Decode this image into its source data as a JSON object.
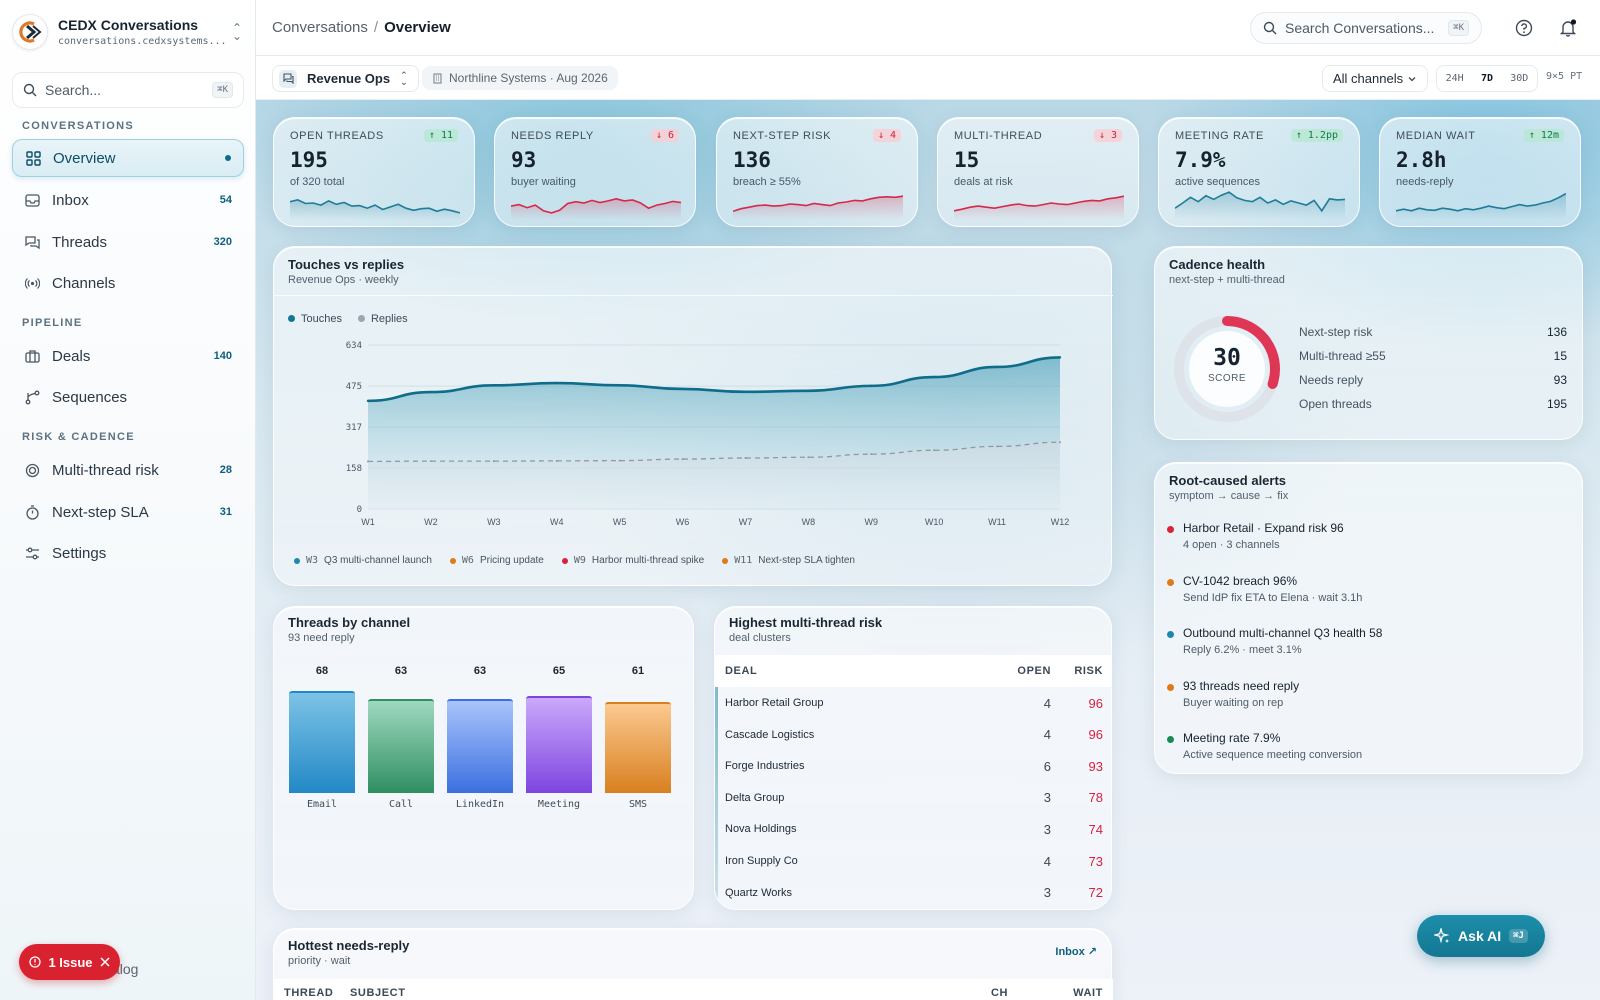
{
  "app": {
    "name": "CEDX Conversations",
    "domain": "conversations.cedxsystems..."
  },
  "sidebar": {
    "search_placeholder": "Search...",
    "search_shortcut": "⌘K",
    "sections": {
      "conversations": "CONVERSATIONS",
      "pipeline": "PIPELINE",
      "risk": "RISK & CADENCE"
    },
    "items": [
      {
        "label": "Overview",
        "count": "",
        "icon": "grid-icon"
      },
      {
        "label": "Inbox",
        "count": "54",
        "icon": "inbox-icon"
      },
      {
        "label": "Threads",
        "count": "320",
        "icon": "threads-icon"
      },
      {
        "label": "Channels",
        "count": "",
        "icon": "broadcast-icon"
      },
      {
        "label": "Deals",
        "count": "140",
        "icon": "briefcase-icon"
      },
      {
        "label": "Sequences",
        "count": "",
        "icon": "branch-icon"
      },
      {
        "label": "Multi-thread risk",
        "count": "28",
        "icon": "target-icon"
      },
      {
        "label": "Next-step SLA",
        "count": "31",
        "icon": "timer-icon"
      },
      {
        "label": "Settings",
        "count": "",
        "icon": "sliders-icon"
      }
    ],
    "issue_label": "1 Issue",
    "catalog_label": "alog"
  },
  "topbar": {
    "breadcrumb_root": "Conversations",
    "breadcrumb_sep": "/",
    "breadcrumb_current": "Overview",
    "search_placeholder": "Search Conversations...",
    "search_shortcut": "⌘K"
  },
  "filters": {
    "workspace": "Revenue Ops",
    "org": "Northline Systems · Aug 2026",
    "channel": "All channels",
    "ranges": [
      "24H",
      "7D",
      "30D"
    ],
    "active_range": "7D",
    "grid": "9×5 PT"
  },
  "kpis": [
    {
      "label": "OPEN THREADS",
      "value": "195",
      "sub": "of 320 total",
      "delta": "↑ 11",
      "dir": "up",
      "spark_color": "#1f7c98",
      "spark": [
        0.55,
        0.62,
        0.48,
        0.5,
        0.42,
        0.58,
        0.45,
        0.52,
        0.38,
        0.4,
        0.3,
        0.42,
        0.25,
        0.35,
        0.45,
        0.3,
        0.22,
        0.28,
        0.3,
        0.18,
        0.26,
        0.2,
        0.12
      ]
    },
    {
      "label": "NEEDS REPLY",
      "value": "93",
      "sub": "buyer waiting",
      "delta": "↓ 6",
      "dir": "down",
      "spark_color": "#d6284a",
      "spark": [
        0.38,
        0.44,
        0.32,
        0.42,
        0.2,
        0.12,
        0.22,
        0.48,
        0.55,
        0.5,
        0.6,
        0.52,
        0.58,
        0.66,
        0.58,
        0.62,
        0.5,
        0.3,
        0.42,
        0.48,
        0.56,
        0.52
      ]
    },
    {
      "label": "NEXT-STEP RISK",
      "value": "136",
      "sub": "breach ≥ 55%",
      "delta": "↓ 4",
      "dir": "down",
      "spark_color": "#d6284a",
      "spark": [
        0.18,
        0.28,
        0.34,
        0.4,
        0.42,
        0.38,
        0.4,
        0.46,
        0.44,
        0.4,
        0.48,
        0.44,
        0.4,
        0.5,
        0.54,
        0.6,
        0.58,
        0.66,
        0.72,
        0.74,
        0.72,
        0.76
      ]
    },
    {
      "label": "MULTI-THREAD",
      "value": "15",
      "sub": "deals at risk",
      "delta": "↓ 3",
      "dir": "down",
      "spark_color": "#d6284a",
      "spark": [
        0.2,
        0.26,
        0.34,
        0.38,
        0.34,
        0.3,
        0.36,
        0.42,
        0.46,
        0.4,
        0.38,
        0.44,
        0.5,
        0.46,
        0.44,
        0.5,
        0.56,
        0.6,
        0.58,
        0.66,
        0.7,
        0.76
      ]
    },
    {
      "label": "MEETING RATE",
      "value": "7.9%",
      "sub": "active sequences",
      "delta": "↑ 1.2pp",
      "dir": "up",
      "spark_color": "#1f7c98",
      "spark": [
        0.3,
        0.5,
        0.72,
        0.55,
        0.78,
        0.64,
        0.8,
        0.92,
        0.7,
        0.6,
        0.55,
        0.72,
        0.5,
        0.62,
        0.45,
        0.58,
        0.5,
        0.42,
        0.6,
        0.2,
        0.66,
        0.62,
        0.64
      ]
    },
    {
      "label": "MEDIAN WAIT",
      "value": "2.8h",
      "sub": "needs-reply",
      "delta": "↑ 12m",
      "dir": "up",
      "spark_color": "#1f7c98",
      "spark": [
        0.2,
        0.26,
        0.2,
        0.3,
        0.24,
        0.22,
        0.3,
        0.26,
        0.2,
        0.28,
        0.24,
        0.3,
        0.38,
        0.32,
        0.28,
        0.36,
        0.44,
        0.38,
        0.42,
        0.5,
        0.56,
        0.7,
        0.86
      ]
    }
  ],
  "touches_chart": {
    "title": "Touches vs replies",
    "subtitle": "Revenue Ops · weekly",
    "legend": [
      "Touches",
      "Replies"
    ],
    "annotations": [
      {
        "week": "W3",
        "text": "Q3 multi-channel launch",
        "color": "#1f86b0"
      },
      {
        "week": "W6",
        "text": "Pricing update",
        "color": "#e07a16"
      },
      {
        "week": "W9",
        "text": "Harbor multi-thread spike",
        "color": "#d8233b"
      },
      {
        "week": "W11",
        "text": "Next-step SLA tighten",
        "color": "#e07a16"
      }
    ]
  },
  "chart_data": {
    "type": "area",
    "categories": [
      "W1",
      "W2",
      "W3",
      "W4",
      "W5",
      "W6",
      "W7",
      "W8",
      "W9",
      "W10",
      "W11",
      "W12"
    ],
    "series": [
      {
        "name": "Touches",
        "values": [
          418,
          452,
          478,
          487,
          478,
          464,
          453,
          457,
          476,
          510,
          549,
          586
        ]
      },
      {
        "name": "Replies",
        "values": [
          184,
          185,
          185,
          186,
          187,
          193,
          197,
          200,
          212,
          227,
          242,
          258
        ]
      }
    ],
    "yticks": [
      0,
      158,
      317,
      475,
      634
    ],
    "ylim": [
      0,
      634
    ],
    "title": "Touches vs replies",
    "subtitle": "Revenue Ops · weekly",
    "legend_position": "top-left"
  },
  "cadence": {
    "title": "Cadence health",
    "subtitle": "next-step + multi-thread",
    "score": "30",
    "score_label": "SCORE",
    "score_fraction": 0.3,
    "metrics": [
      {
        "label": "Next-step risk",
        "value": "136"
      },
      {
        "label": "Multi-thread ≥55",
        "value": "15"
      },
      {
        "label": "Needs reply",
        "value": "93"
      },
      {
        "label": "Open threads",
        "value": "195"
      }
    ]
  },
  "alerts": {
    "title": "Root-caused alerts",
    "subtitle": "symptom → cause → fix",
    "items": [
      {
        "title": "Harbor Retail · Expand risk 96",
        "sub": "4 open · 3 channels",
        "color": "#d8233b"
      },
      {
        "title": "CV-1042 breach 96%",
        "sub": "Send IdP fix ETA to Elena · wait 3.1h",
        "color": "#e07a16"
      },
      {
        "title": "Outbound multi-channel Q3 health 58",
        "sub": "Reply 6.2% · meet 3.1%",
        "color": "#1f86b0"
      },
      {
        "title": "93 threads need reply",
        "sub": "Buyer waiting on rep",
        "color": "#e07a16"
      },
      {
        "title": "Meeting rate 7.9%",
        "sub": "Active sequence meeting conversion",
        "color": "#1a8a55"
      }
    ]
  },
  "channels": {
    "title": "Threads by channel",
    "subtitle": "93 need reply",
    "bars": [
      {
        "label": "Email",
        "value": 68,
        "top": "#7cc3e6",
        "bottom": "#2288c6"
      },
      {
        "label": "Call",
        "value": 63,
        "top": "#9fd8bf",
        "bottom": "#2f8f62"
      },
      {
        "label": "LinkedIn",
        "value": 63,
        "top": "#a9c4fb",
        "bottom": "#3c6fe0"
      },
      {
        "label": "Meeting",
        "value": 65,
        "top": "#caa9fb",
        "bottom": "#7d45e0"
      },
      {
        "label": "SMS",
        "value": 61,
        "top": "#fbc990",
        "bottom": "#d8801f"
      }
    ]
  },
  "risk_table": {
    "title": "Highest multi-thread risk",
    "subtitle": "deal clusters",
    "headers": [
      "DEAL",
      "OPEN",
      "RISK"
    ],
    "rows": [
      {
        "deal": "Harbor Retail Group",
        "open": "4",
        "risk": "96"
      },
      {
        "deal": "Cascade Logistics",
        "open": "4",
        "risk": "96"
      },
      {
        "deal": "Forge Industries",
        "open": "6",
        "risk": "93"
      },
      {
        "deal": "Delta Group",
        "open": "3",
        "risk": "78"
      },
      {
        "deal": "Nova Holdings",
        "open": "3",
        "risk": "74"
      },
      {
        "deal": "Iron Supply Co",
        "open": "4",
        "risk": "73"
      },
      {
        "deal": "Quartz Works",
        "open": "3",
        "risk": "72"
      }
    ]
  },
  "hottest": {
    "title": "Hottest needs-reply",
    "subtitle": "priority · wait",
    "link": "Inbox ↗",
    "headers": [
      "THREAD",
      "SUBJECT",
      "CH",
      "WAIT"
    ]
  },
  "ask_ai": {
    "label": "Ask AI",
    "shortcut": "⌘J"
  }
}
